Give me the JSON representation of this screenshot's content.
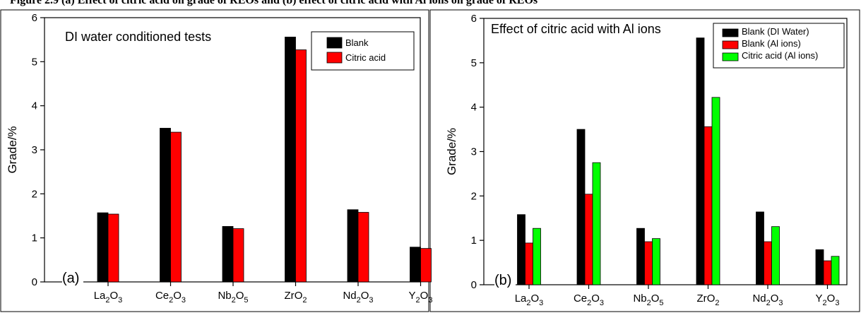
{
  "caption": "Figure 2.9 (a) Effect of citric acid on grade of REOs and (b) effect of citric acid with Al ions on grade of REOs",
  "chart_data": [
    {
      "type": "bar",
      "panel_label": "(a)",
      "title": "DI water conditioned tests",
      "xlabel": "",
      "ylabel": "Grade/%",
      "ylim": [
        0,
        6
      ],
      "yticks": [
        0,
        1,
        2,
        3,
        4,
        5,
        6
      ],
      "grid": false,
      "legend_position": "top-right",
      "categories": [
        {
          "base": "La",
          "sub1": "2",
          "mid": "O",
          "sub2": "3"
        },
        {
          "base": "Ce",
          "sub1": "2",
          "mid": "O",
          "sub2": "3"
        },
        {
          "base": "Nb",
          "sub1": "2",
          "mid": "O",
          "sub2": "5"
        },
        {
          "base": "Zr",
          "sub1": "",
          "mid": "O",
          "sub2": "2"
        },
        {
          "base": "Nd",
          "sub1": "2",
          "mid": "O",
          "sub2": "3"
        },
        {
          "base": "Y",
          "sub1": "2",
          "mid": "O",
          "sub2": "3"
        }
      ],
      "series": [
        {
          "name": "Blank",
          "color": "#000000",
          "values": [
            1.57,
            3.49,
            1.26,
            5.56,
            1.64,
            0.79
          ]
        },
        {
          "name": "Citric acid",
          "color": "#ff0000",
          "values": [
            1.54,
            3.4,
            1.21,
            5.27,
            1.58,
            0.76
          ]
        }
      ]
    },
    {
      "type": "bar",
      "panel_label": "(b)",
      "title": "Effect of citric acid with Al ions",
      "xlabel": "",
      "ylabel": "Grade/%",
      "ylim": [
        0,
        6
      ],
      "yticks": [
        0,
        1,
        2,
        3,
        4,
        5,
        6
      ],
      "grid": false,
      "legend_position": "top-right",
      "categories": [
        {
          "base": "La",
          "sub1": "2",
          "mid": "O",
          "sub2": "3"
        },
        {
          "base": "Ce",
          "sub1": "2",
          "mid": "O",
          "sub2": "3"
        },
        {
          "base": "Nb",
          "sub1": "2",
          "mid": "O",
          "sub2": "5"
        },
        {
          "base": "Zr",
          "sub1": "",
          "mid": "O",
          "sub2": "2"
        },
        {
          "base": "Nd",
          "sub1": "2",
          "mid": "O",
          "sub2": "3"
        },
        {
          "base": "Y",
          "sub1": "2",
          "mid": "O",
          "sub2": "3"
        }
      ],
      "series": [
        {
          "name": "Blank (DI Water)",
          "color": "#000000",
          "values": [
            1.58,
            3.5,
            1.27,
            5.56,
            1.64,
            0.79
          ]
        },
        {
          "name": "Blank (Al ions)",
          "color": "#ff0000",
          "values": [
            0.94,
            2.04,
            0.97,
            3.56,
            0.97,
            0.54
          ]
        },
        {
          "name": "Citric acid (Al ions)",
          "color": "#00ff00",
          "values": [
            1.27,
            2.75,
            1.04,
            4.22,
            1.31,
            0.64
          ]
        }
      ]
    }
  ]
}
